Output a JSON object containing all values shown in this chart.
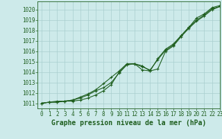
{
  "xlabel": "Graphe pression niveau de la mer (hPa)",
  "xlim": [
    -0.5,
    23
  ],
  "ylim": [
    1010.5,
    1020.8
  ],
  "yticks": [
    1011,
    1012,
    1013,
    1014,
    1015,
    1016,
    1017,
    1018,
    1019,
    1020
  ],
  "xticks": [
    0,
    1,
    2,
    3,
    4,
    5,
    6,
    7,
    8,
    9,
    10,
    11,
    12,
    13,
    14,
    15,
    16,
    17,
    18,
    19,
    20,
    21,
    22,
    23
  ],
  "bg_color": "#cdeaea",
  "grid_color": "#a8cece",
  "line_color": "#1e5e1e",
  "line1": [
    1011.0,
    1011.1,
    1011.1,
    1011.2,
    1011.2,
    1011.3,
    1011.5,
    1011.8,
    1012.2,
    1012.8,
    1014.0,
    1014.7,
    1014.8,
    1014.5,
    1014.2,
    1015.2,
    1016.1,
    1016.6,
    1017.5,
    1018.3,
    1019.0,
    1019.5,
    1020.1,
    1020.3
  ],
  "line2": [
    1011.0,
    1011.1,
    1011.1,
    1011.2,
    1011.3,
    1011.5,
    1011.8,
    1012.2,
    1012.5,
    1013.0,
    1013.9,
    1014.7,
    1014.8,
    1014.2,
    1014.1,
    1014.3,
    1016.0,
    1016.5,
    1017.4,
    1018.2,
    1018.9,
    1019.4,
    1020.0,
    1020.3
  ],
  "line3": [
    1011.0,
    1011.1,
    1011.2,
    1011.2,
    1011.3,
    1011.6,
    1011.9,
    1012.3,
    1012.9,
    1013.5,
    1014.1,
    1014.8,
    1014.8,
    1014.6,
    1014.1,
    1015.3,
    1016.2,
    1016.7,
    1017.5,
    1018.3,
    1019.2,
    1019.6,
    1020.2,
    1020.4
  ],
  "marker": "+",
  "markersize": 3.5,
  "linewidth": 0.8,
  "xlabel_fontsize": 7,
  "tick_fontsize": 5.5
}
